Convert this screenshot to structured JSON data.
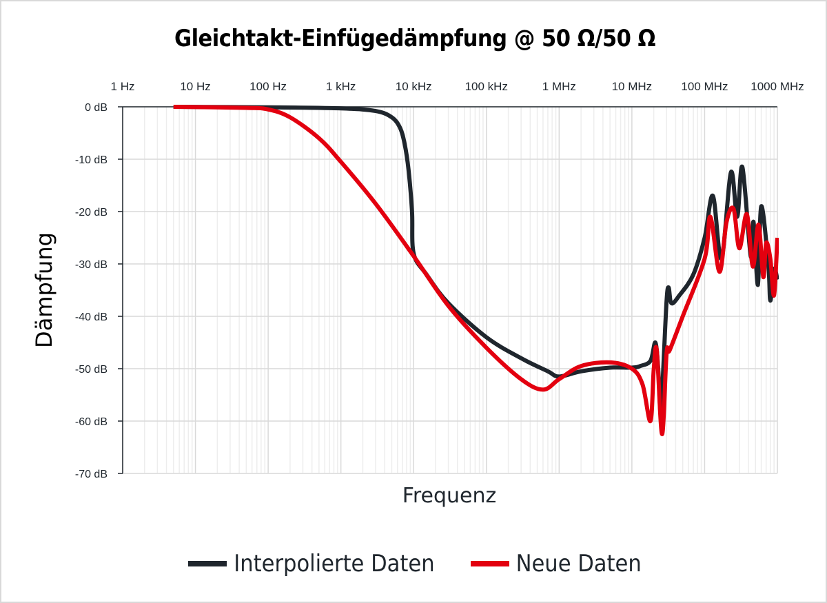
{
  "chart_data": {
    "type": "line",
    "title": "Gleichtakt-Einfügedämpfung @ 50 Ω/50 Ω",
    "xlabel": "Frequenz",
    "ylabel": "Dämpfung",
    "x_scale": "log",
    "x_axis_position": "top",
    "xlim_hz": [
      1,
      1000000000
    ],
    "ylim_db": [
      -70,
      0
    ],
    "grid": true,
    "legend_position": "bottom",
    "x_tick_labels": [
      "1 Hz",
      "10 Hz",
      "100 Hz",
      "1 kHz",
      "10 kHz",
      "100 kHz",
      "1 MHz",
      "10 MHz",
      "100 MHz",
      "1000 MHz"
    ],
    "y_tick_labels": [
      "0 dB",
      "-10 dB",
      "-20 dB",
      "-30 dB",
      "-40 dB",
      "-50 dB",
      "-60 dB",
      "-70 dB"
    ],
    "series": [
      {
        "name": "Interpolierte Daten",
        "color": "#1f262d",
        "x_hz": [
          5,
          100,
          1000,
          3000,
          5000,
          6500,
          7500,
          8500,
          9500,
          10000,
          15000,
          30000,
          100000,
          300000,
          700000,
          1000000,
          2000000,
          5000000,
          10000000,
          13000000,
          18000000,
          21000000,
          23000000,
          25000000,
          27000000,
          30000000,
          32000000,
          35000000,
          45000000,
          70000000,
          100000000,
          130000000,
          170000000,
          230000000,
          280000000,
          330000000,
          430000000,
          470000000,
          540000000,
          600000000,
          750000000,
          800000000,
          900000000,
          1000000000
        ],
        "y_db": [
          0,
          -0.1,
          -0.3,
          -0.8,
          -2,
          -4,
          -7,
          -12,
          -20,
          -28,
          -32,
          -37.5,
          -44,
          -48,
          -50.5,
          -51.5,
          -50.5,
          -49.8,
          -49.8,
          -49.5,
          -48.5,
          -45,
          -50,
          -59,
          -50,
          -37,
          -34.5,
          -37.5,
          -36,
          -32,
          -25,
          -17,
          -29,
          -12.5,
          -21,
          -11.5,
          -28.5,
          -22,
          -34,
          -19,
          -30,
          -37,
          -31,
          -33
        ]
      },
      {
        "name": "Neue Daten",
        "color": "#e3000f",
        "x_hz": [
          5,
          50,
          100,
          200,
          500,
          1000,
          3000,
          10000,
          30000,
          100000,
          300000,
          600000,
          1000000,
          2000000,
          5000000,
          10000000,
          14000000,
          18000000,
          20000000,
          22000000,
          26000000,
          30000000,
          33000000,
          50000000,
          100000000,
          120000000,
          160000000,
          200000000,
          250000000,
          300000000,
          380000000,
          460000000,
          550000000,
          640000000,
          700000000,
          800000000,
          900000000,
          1000000000
        ],
        "y_db": [
          0,
          -0.2,
          -0.5,
          -2,
          -6,
          -10.5,
          -18.5,
          -28.5,
          -38,
          -46,
          -52,
          -54,
          -52,
          -49.5,
          -48.8,
          -50,
          -53,
          -60,
          -50,
          -46.5,
          -62.5,
          -47,
          -46.5,
          -40,
          -29,
          -21,
          -31.5,
          -22,
          -19.5,
          -27,
          -20.5,
          -30.5,
          -22.5,
          -32.5,
          -26,
          -29,
          -36,
          -25
        ]
      }
    ]
  },
  "title": "Gleichtakt-Einfügedämpfung @ 50 Ω/50 Ω",
  "axes": {
    "x_label": "Frequenz",
    "y_label": "Dämpfung"
  },
  "legend": {
    "items": [
      {
        "label": "Interpolierte Daten",
        "color": "#1f262d"
      },
      {
        "label": "Neue Daten",
        "color": "#e3000f"
      }
    ]
  },
  "colors": {
    "frame_border": "#d9d9d9",
    "grid_major": "#d9d9d9",
    "grid_minor": "#ededed",
    "axis": "#1f262d"
  }
}
